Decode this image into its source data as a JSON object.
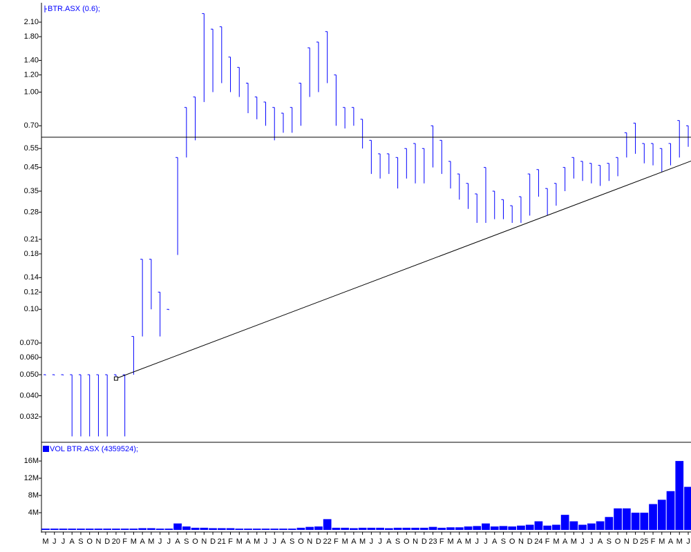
{
  "chart_data": [
    {
      "type": "ohlc",
      "legend": "BTR.ASX (0.6);",
      "log_scale": true,
      "color": "#0000ff",
      "ylim": [
        0.0246,
        2.56
      ],
      "yticks": [
        0.032,
        {
          "value": 0.04,
          "label": "0.040"
        },
        {
          "value": 0.05,
          "label": "0.050"
        },
        {
          "value": 0.06,
          "label": "0.060"
        },
        {
          "value": 0.07,
          "label": "0.070"
        },
        {
          "value": 0.1,
          "label": "0.10"
        },
        0.12,
        0.14,
        0.18,
        0.21,
        0.28,
        0.35,
        0.45,
        0.55,
        {
          "value": 0.7,
          "label": "0.70"
        },
        {
          "value": 1,
          "label": "1.00"
        },
        {
          "value": 1.2,
          "label": "1.20"
        },
        {
          "value": 1.4,
          "label": "1.40"
        },
        {
          "value": 1.8,
          "label": "1.80"
        },
        {
          "value": 2.1,
          "label": "2.10"
        }
      ],
      "high": [
        0.05,
        0.05,
        0.05,
        0.05,
        0.05,
        0.05,
        0.05,
        0.05,
        0.05,
        0.05,
        0.075,
        0.17,
        0.17,
        0.12,
        0.1,
        0.5,
        0.85,
        0.95,
        2.3,
        1.95,
        2.0,
        1.45,
        1.3,
        1.1,
        0.95,
        0.9,
        0.85,
        0.8,
        0.85,
        1.1,
        1.6,
        1.7,
        1.9,
        1.2,
        0.85,
        0.85,
        0.75,
        0.6,
        0.52,
        0.52,
        0.5,
        0.55,
        0.58,
        0.55,
        0.7,
        0.6,
        0.48,
        0.42,
        0.38,
        0.34,
        0.45,
        0.35,
        0.32,
        0.3,
        0.33,
        0.42,
        0.44,
        0.36,
        0.38,
        0.45,
        0.5,
        0.48,
        0.47,
        0.46,
        0.47,
        0.5,
        0.65,
        0.72,
        0.58,
        0.58,
        0.55,
        0.58,
        0.74,
        0.7
      ],
      "low": [
        0.05,
        0.05,
        0.05,
        0.026,
        0.026,
        0.026,
        0.026,
        0.026,
        0.048,
        0.026,
        0.05,
        0.075,
        0.1,
        0.075,
        0.1,
        0.178,
        0.5,
        0.6,
        0.9,
        1.0,
        1.1,
        1.0,
        0.95,
        0.8,
        0.75,
        0.7,
        0.6,
        0.65,
        0.65,
        0.7,
        0.95,
        1.0,
        1.1,
        0.7,
        0.68,
        0.7,
        0.55,
        0.42,
        0.4,
        0.42,
        0.36,
        0.4,
        0.38,
        0.38,
        0.45,
        0.42,
        0.36,
        0.32,
        0.29,
        0.25,
        0.25,
        0.26,
        0.26,
        0.25,
        0.25,
        0.27,
        0.33,
        0.27,
        0.3,
        0.35,
        0.4,
        0.39,
        0.38,
        0.37,
        0.39,
        0.41,
        0.5,
        0.52,
        0.47,
        0.46,
        0.43,
        0.46,
        0.5,
        0.56
      ],
      "hline": 0.62,
      "trendline": {
        "x": [
          8.0,
          73.8
        ],
        "y": [
          0.048,
          0.49
        ]
      }
    },
    {
      "type": "bar",
      "legend": "VOL BTR.ASX (4359524);",
      "color": "#0000ff",
      "ylim": [
        0,
        19700000
      ],
      "yticks": [
        {
          "value": 4000000,
          "label": "4M"
        },
        {
          "value": 8000000,
          "label": "8M"
        },
        {
          "value": 12000000,
          "label": "12M"
        },
        {
          "value": 16000000,
          "label": "16M"
        }
      ],
      "categories": [
        "M",
        "J",
        "J",
        "A",
        "S",
        "O",
        "N",
        "D",
        "20",
        "F",
        "M",
        "A",
        "M",
        "J",
        "J",
        "A",
        "S",
        "O",
        "N",
        "D",
        "21",
        "F",
        "M",
        "A",
        "M",
        "J",
        "J",
        "A",
        "S",
        "O",
        "N",
        "D",
        "22",
        "F",
        "M",
        "A",
        "M",
        "J",
        "J",
        "A",
        "S",
        "O",
        "N",
        "D",
        "23",
        "F",
        "M",
        "A",
        "M",
        "J",
        "J",
        "A",
        "S",
        "O",
        "N",
        "D",
        "24",
        "F",
        "M",
        "A",
        "M",
        "J",
        "J",
        "A",
        "S",
        "O",
        "N",
        "D",
        "25",
        "F",
        "M",
        "A",
        "M",
        "J"
      ],
      "values": [
        300000,
        300000,
        300000,
        300000,
        300000,
        300000,
        300000,
        300000,
        300000,
        300000,
        300000,
        400000,
        400000,
        300000,
        300000,
        1500000,
        800000,
        500000,
        500000,
        400000,
        400000,
        400000,
        300000,
        300000,
        300000,
        300000,
        300000,
        300000,
        300000,
        500000,
        700000,
        800000,
        2500000,
        500000,
        500000,
        400000,
        500000,
        500000,
        500000,
        400000,
        500000,
        500000,
        500000,
        500000,
        700000,
        500000,
        600000,
        600000,
        800000,
        900000,
        1500000,
        800000,
        900000,
        800000,
        1000000,
        1200000,
        2000000,
        1000000,
        1200000,
        3500000,
        2000000,
        1200000,
        1500000,
        2000000,
        3000000,
        5000000,
        5000000,
        4000000,
        4000000,
        6000000,
        7000000,
        9000000,
        16000000,
        10000000
      ]
    }
  ]
}
